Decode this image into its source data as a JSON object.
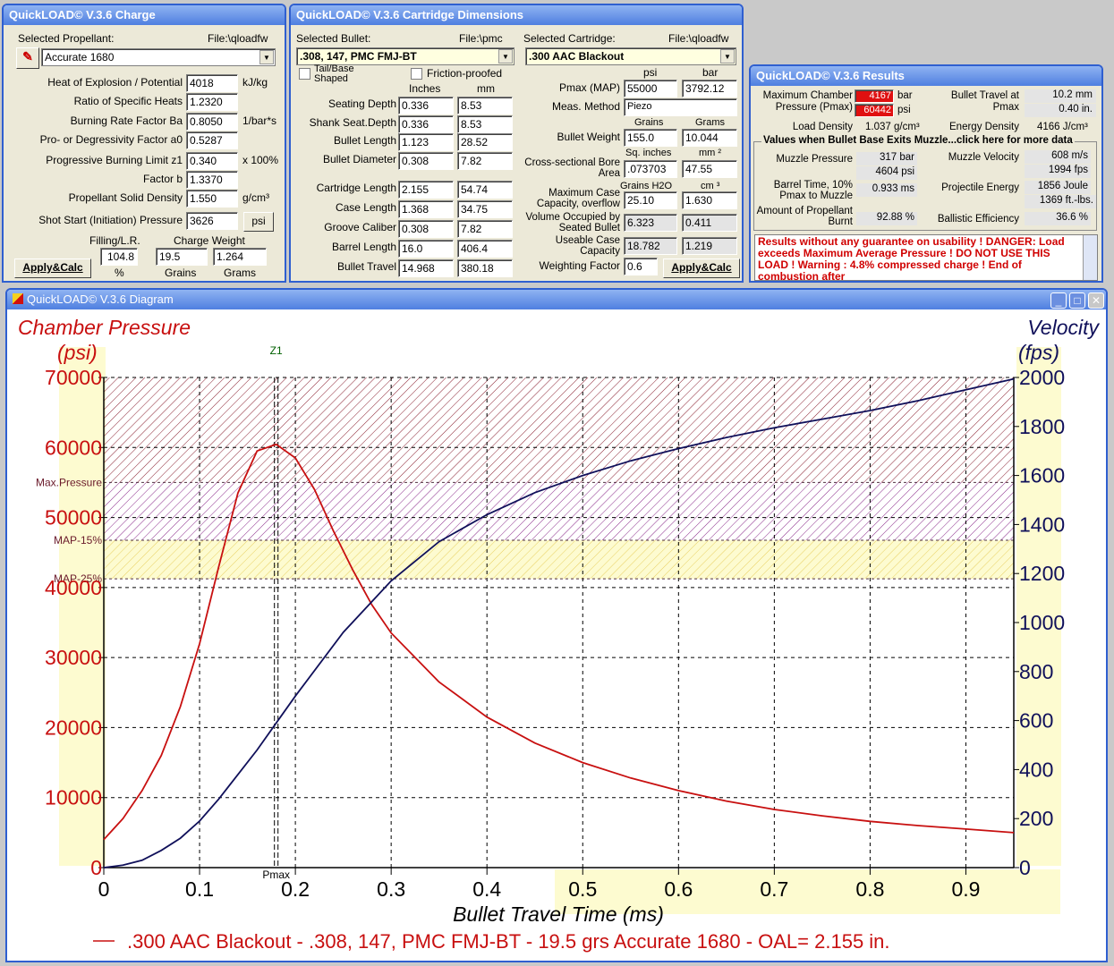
{
  "charge": {
    "title": "QuickLOAD© V.3.6 Charge",
    "propellant_label": "Selected Propellant:",
    "file_label": "File:\\qloadfw",
    "propellant": "Accurate 1680",
    "rows": [
      {
        "label": "Heat of Explosion / Potential",
        "value": "4018",
        "unit": "kJ/kg"
      },
      {
        "label": "Ratio of Specific Heats",
        "value": "1.2320",
        "unit": ""
      },
      {
        "label": "Burning Rate Factor  Ba",
        "value": "0.8050",
        "unit": "1/bar*s"
      },
      {
        "label": "Pro- or Degressivity Factor  a0",
        "value": "0.5287",
        "unit": ""
      },
      {
        "label": "Progressive Burning Limit z1",
        "value": "0.340",
        "unit": "x 100%"
      },
      {
        "label": "Factor  b",
        "value": "1.3370",
        "unit": ""
      },
      {
        "label": "Propellant Solid Density",
        "value": "1.550",
        "unit": "g/cm³"
      }
    ],
    "shot_start_label": "Shot Start (Initiation) Pressure",
    "shot_start": "3626",
    "psi_btn": "psi",
    "filling_label": "Filling/L.R.",
    "filling": "104.8",
    "filling_unit": "%",
    "charge_label": "Charge Weight",
    "grains": "19.5",
    "grams": "1.264",
    "grains_unit": "Grains",
    "grams_unit": "Grams",
    "apply": "Apply&Calc"
  },
  "dims": {
    "title": "QuickLOAD© V.3.6 Cartridge Dimensions",
    "bullet_label": "Selected Bullet:",
    "bullet_file": "File:\\pmc",
    "bullet": ".308, 147, PMC FMJ-BT",
    "cart_label": "Selected Cartridge:",
    "cart_file": "File:\\qloadfw",
    "cartridge": ".300 AAC Blackout",
    "tail_label": "Tail/Base Shaped",
    "friction_label": "Friction-proofed",
    "inches": "Inches",
    "mm": "mm",
    "rows": [
      {
        "label": "Seating Depth",
        "in": "0.336",
        "mm": "8.53"
      },
      {
        "label": "Shank Seat.Depth",
        "in": "0.336",
        "mm": "8.53"
      },
      {
        "label": "Bullet Length",
        "in": "1.123",
        "mm": "28.52"
      },
      {
        "label": "Bullet Diameter",
        "in": "0.308",
        "mm": "7.82"
      },
      {
        "label": "Cartridge Length",
        "in": "2.155",
        "mm": "54.74"
      },
      {
        "label": "Case Length",
        "in": "1.368",
        "mm": "34.75"
      },
      {
        "label": "Groove Caliber",
        "in": "0.308",
        "mm": "7.82"
      },
      {
        "label": "Barrel Length",
        "in": "16.0",
        "mm": "406.4"
      },
      {
        "label": "Bullet Travel",
        "in": "14.968",
        "mm": "380.18"
      }
    ],
    "psi": "psi",
    "bar": "bar",
    "pmax_label": "Pmax (MAP)",
    "pmax_psi": "55000",
    "pmax_bar": "3792.12",
    "meas_label": "Meas. Method",
    "meas": "Piezo",
    "grains": "Grains",
    "grams": "Grams",
    "weight_label": "Bullet Weight",
    "weight_gr": "155.0",
    "weight_g": "10.044",
    "sqin": "Sq. inches",
    "mm2": "mm ²",
    "area_label": "Cross-sectional Bore Area",
    "area_in": ".073703",
    "area_mm": "47.55",
    "h2o": "Grains H2O",
    "cm3": "cm ³",
    "maxcase_label": "Maximum Case Capacity, overflow",
    "maxcase_gr": "25.10",
    "maxcase_cm": "1.630",
    "vol_label": "Volume Occupied by Seated Bullet",
    "vol_gr": "6.323",
    "vol_cm": "0.411",
    "usable_label": "Useable Case Capacity",
    "usable_gr": "18.782",
    "usable_cm": "1.219",
    "wf_label": "Weighting Factor",
    "wf": "0.6",
    "apply": "Apply&Calc"
  },
  "results": {
    "title": "QuickLOAD© V.3.6 Results",
    "maxp_label": "Maximum Chamber Pressure (Pmax)",
    "maxp_bar": "4167",
    "maxp_bar_u": "bar",
    "maxp_psi": "60442",
    "maxp_psi_u": "psi",
    "bt_label": "Bullet Travel at Pmax",
    "bt_mm": "10.2 mm",
    "bt_in": "0.40 in.",
    "ld_label": "Load Density",
    "ld": "1.037 g/cm³",
    "ed_label": "Energy Density",
    "ed": "4166 J/cm³",
    "group_label": "Values when Bullet Base Exits Muzzle...click here for more data",
    "mp_label": "Muzzle Pressure",
    "mp_bar": "317 bar",
    "mp_psi": "4604 psi",
    "mv_label": "Muzzle Velocity",
    "mv_ms": "608 m/s",
    "mv_fps": "1994 fps",
    "bt10_label": "Barrel Time, 10% Pmax to Muzzle",
    "bt10": "0.933 ms",
    "pe_label": "Projectile Energy",
    "pe_j": "1856 Joule",
    "pe_ft": "1369 ft.-lbs.",
    "burnt_label": "Amount of Propellant Burnt",
    "burnt": "92.88 %",
    "be_label": "Ballistic Efficiency",
    "be": "36.6 %",
    "warning": "Results without any guarantee on usability !  DANGER: Load exceeds Maximum Average Pressure ! DO NOT USE THIS LOAD !   Warning : 4.8% compressed charge !  End of combustion after"
  },
  "diagram": {
    "title": "QuickLOAD© V.3.6 Diagram"
  },
  "colors": {
    "pressure": "#c81010",
    "velocity": "#10105a",
    "title_bar": "#4f7fe0"
  },
  "chart_data": {
    "type": "line",
    "title": "",
    "xlabel": "Bullet Travel Time (ms)",
    "ylabel_left": "Chamber Pressure",
    "ylabel_left_unit": "(psi)",
    "ylabel_right": "Velocity",
    "ylabel_right_unit": "(fps)",
    "xlim": [
      0,
      0.95
    ],
    "ylim_left": [
      0,
      70000
    ],
    "ylim_right": [
      0,
      2000
    ],
    "x_ticks": [
      "0",
      "0.1",
      "0.2",
      "0.3",
      "0.4",
      "0.5",
      "0.6",
      "0.7",
      "0.8",
      "0.9"
    ],
    "y_left_ticks": [
      "0",
      "10000",
      "20000",
      "30000",
      "40000",
      "50000",
      "60000",
      "70000"
    ],
    "y_right_ticks": [
      "0",
      "200",
      "400",
      "600",
      "800",
      "1000",
      "1200",
      "1400",
      "1600",
      "1800",
      "2000"
    ],
    "reference_lines": [
      {
        "label": "Max.Pressure",
        "value": 55000
      },
      {
        "label": "MAP-15%",
        "value": 46750
      },
      {
        "label": "MAP-25%",
        "value": 41250
      }
    ],
    "markers": [
      {
        "label": "Z1",
        "x": 0.18
      },
      {
        "label": "Pmax",
        "x": 0.18
      }
    ],
    "series": [
      {
        "axis": "left",
        "color": "#c81010",
        "x": [
          0,
          0.02,
          0.04,
          0.06,
          0.08,
          0.1,
          0.12,
          0.14,
          0.16,
          0.18,
          0.2,
          0.22,
          0.24,
          0.26,
          0.28,
          0.3,
          0.35,
          0.4,
          0.45,
          0.5,
          0.55,
          0.6,
          0.65,
          0.7,
          0.75,
          0.8,
          0.85,
          0.9,
          0.95
        ],
        "y": [
          4000,
          7000,
          11000,
          16000,
          23000,
          32000,
          43000,
          53500,
          59500,
          60442,
          58500,
          54000,
          48000,
          42500,
          37500,
          33500,
          26500,
          21500,
          17800,
          15000,
          12800,
          11000,
          9500,
          8300,
          7400,
          6600,
          6000,
          5500,
          5000
        ]
      },
      {
        "axis": "right",
        "color": "#10105a",
        "x": [
          0,
          0.02,
          0.04,
          0.06,
          0.08,
          0.1,
          0.12,
          0.14,
          0.16,
          0.18,
          0.2,
          0.25,
          0.3,
          0.35,
          0.4,
          0.45,
          0.5,
          0.55,
          0.6,
          0.65,
          0.7,
          0.75,
          0.8,
          0.85,
          0.9,
          0.95
        ],
        "y": [
          0,
          10,
          30,
          70,
          120,
          190,
          280,
          380,
          480,
          590,
          700,
          960,
          1170,
          1330,
          1440,
          1530,
          1600,
          1660,
          1710,
          1755,
          1795,
          1830,
          1865,
          1905,
          1950,
          1994
        ]
      }
    ],
    "legend": ".300 AAC Blackout - .308, 147, PMC FMJ-BT - 19.5 grs Accurate 1680 - OAL= 2.155 in."
  }
}
